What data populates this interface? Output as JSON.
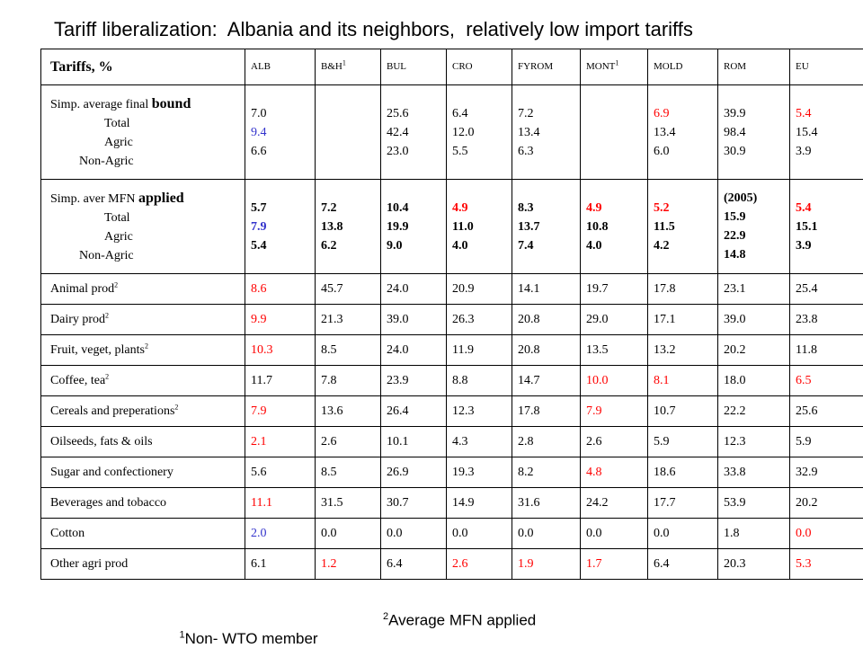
{
  "title": "Tariff liberalization:  Albania and its neighbors,  relatively low import tariffs",
  "colors": {
    "red": "#ff0000",
    "blue": "#3333cc",
    "black": "#000000"
  },
  "header": {
    "corner": "Tariffs, %",
    "countries": [
      {
        "name": "ALB"
      },
      {
        "name": "B&H",
        "note": "1"
      },
      {
        "name": "BUL"
      },
      {
        "name": "CRO"
      },
      {
        "name": "FYROM"
      },
      {
        "name": "MONT",
        "note": "1"
      },
      {
        "name": "MOLD"
      },
      {
        "name": "ROM"
      },
      {
        "name": "EU"
      }
    ]
  },
  "bound": {
    "head": "Simp. average final",
    "head_emph": "bound",
    "sub": [
      "Total",
      "Agric",
      "Non-Agric"
    ],
    "values": [
      {
        "lines": [
          "7.0",
          "9.4",
          "6.6"
        ],
        "colors": [
          "black",
          "blue",
          "black"
        ]
      },
      {
        "lines": []
      },
      {
        "lines": [
          "25.6",
          "42.4",
          "23.0"
        ]
      },
      {
        "lines": [
          "6.4",
          "12.0",
          "5.5"
        ]
      },
      {
        "lines": [
          "7.2",
          "13.4",
          "6.3"
        ]
      },
      {
        "lines": []
      },
      {
        "lines": [
          "6.9",
          "13.4",
          "6.0"
        ],
        "colors": [
          "red",
          "black",
          "black"
        ]
      },
      {
        "lines": [
          "39.9",
          "98.4",
          "30.9"
        ]
      },
      {
        "lines": [
          "5.4",
          "15.4",
          "3.9"
        ],
        "colors": [
          "red",
          "black",
          "black"
        ]
      }
    ]
  },
  "applied": {
    "head": "Simp. aver MFN",
    "head_emph": "applied",
    "sub": [
      "Total",
      "Agric",
      "Non-Agric"
    ],
    "values": [
      {
        "lines": [
          "5.7",
          "7.9",
          "5.4"
        ],
        "colors": [
          "black",
          "blue",
          "black"
        ]
      },
      {
        "lines": [
          "7.2",
          "13.8",
          "6.2"
        ]
      },
      {
        "lines": [
          "10.4",
          "19.9",
          "9.0"
        ]
      },
      {
        "lines": [
          "4.9",
          "11.0",
          "4.0"
        ],
        "colors": [
          "red",
          "black",
          "black"
        ]
      },
      {
        "lines": [
          "8.3",
          "13.7",
          "7.4"
        ]
      },
      {
        "lines": [
          "4.9",
          "10.8",
          "4.0"
        ],
        "colors": [
          "red",
          "black",
          "black"
        ]
      },
      {
        "lines": [
          "5.2",
          "11.5",
          "4.2"
        ],
        "colors": [
          "red",
          "black",
          "black"
        ]
      },
      {
        "lines": [
          "(2005)",
          "15.9",
          "22.9",
          "14.8"
        ]
      },
      {
        "lines": [
          "5.4",
          "15.1",
          "3.9"
        ],
        "colors": [
          "red",
          "black",
          "black"
        ]
      }
    ]
  },
  "rows": [
    {
      "label": "Animal prod",
      "note": "2",
      "values": [
        "8.6",
        "45.7",
        "24.0",
        "20.9",
        "14.1",
        "19.7",
        "17.8",
        "23.1",
        "25.4"
      ],
      "colors": [
        "red",
        "",
        "",
        "",
        "",
        "",
        "",
        "",
        ""
      ]
    },
    {
      "label": "Dairy prod",
      "note": "2",
      "values": [
        "9.9",
        "21.3",
        "39.0",
        "26.3",
        "20.8",
        "29.0",
        "17.1",
        "39.0",
        "23.8"
      ],
      "colors": [
        "red",
        "",
        "",
        "",
        "",
        "",
        "",
        "",
        ""
      ]
    },
    {
      "label": "Fruit, veget, plants",
      "note": "2",
      "values": [
        "10.3",
        "8.5",
        "24.0",
        "11.9",
        "20.8",
        "13.5",
        "13.2",
        "20.2",
        "11.8"
      ],
      "colors": [
        "red",
        "",
        "",
        "",
        "",
        "",
        "",
        "",
        ""
      ]
    },
    {
      "label": "Coffee, tea",
      "note": "2",
      "values": [
        "11.7",
        "7.8",
        "23.9",
        "8.8",
        "14.7",
        "10.0",
        "8.1",
        "18.0",
        "6.5"
      ],
      "colors": [
        "",
        "",
        "",
        "",
        "",
        "red",
        "red",
        "",
        "red"
      ]
    },
    {
      "label": "Cereals and preperations",
      "note": "2",
      "values": [
        "7.9",
        "13.6",
        "26.4",
        "12.3",
        "17.8",
        "7.9",
        "10.7",
        "22.2",
        "25.6"
      ],
      "colors": [
        "red",
        "",
        "",
        "",
        "",
        "red",
        "",
        "",
        ""
      ]
    },
    {
      "label": "Oilseeds, fats & oils",
      "note": "",
      "values": [
        "2.1",
        "2.6",
        "10.1",
        "4.3",
        "2.8",
        "2.6",
        "5.9",
        "12.3",
        "5.9"
      ],
      "colors": [
        "red",
        "",
        "",
        "",
        "",
        "",
        "",
        "",
        ""
      ]
    },
    {
      "label": "Sugar and confectionery",
      "note": "",
      "values": [
        "5.6",
        "8.5",
        "26.9",
        "19.3",
        "8.2",
        "4.8",
        "18.6",
        "33.8",
        "32.9"
      ],
      "colors": [
        "",
        "",
        "",
        "",
        "",
        "red",
        "",
        "",
        ""
      ]
    },
    {
      "label": "Beverages and tobacco",
      "note": "",
      "values": [
        "11.1",
        "31.5",
        "30.7",
        "14.9",
        "31.6",
        "24.2",
        "17.7",
        "53.9",
        "20.2"
      ],
      "colors": [
        "red",
        "",
        "",
        "",
        "",
        "",
        "",
        "",
        ""
      ]
    },
    {
      "label": "Cotton",
      "note": "",
      "values": [
        "2.0",
        "0.0",
        "0.0",
        "0.0",
        "0.0",
        "0.0",
        "0.0",
        "1.8",
        "0.0"
      ],
      "colors": [
        "blue",
        "",
        "",
        "",
        "",
        "",
        "",
        "",
        "red"
      ]
    },
    {
      "label": "Other agri prod",
      "note": "",
      "values": [
        "6.1",
        "1.2",
        "6.4",
        "2.6",
        "1.9",
        "1.7",
        "6.4",
        "20.3",
        "5.3"
      ],
      "colors": [
        "",
        "red",
        "",
        "red",
        "red",
        "red",
        "",
        "",
        "red"
      ]
    }
  ],
  "footnotes": [
    {
      "mark": "1",
      "text": "Non- WTO member"
    },
    {
      "mark": "2",
      "text": "Average MFN applied"
    }
  ]
}
